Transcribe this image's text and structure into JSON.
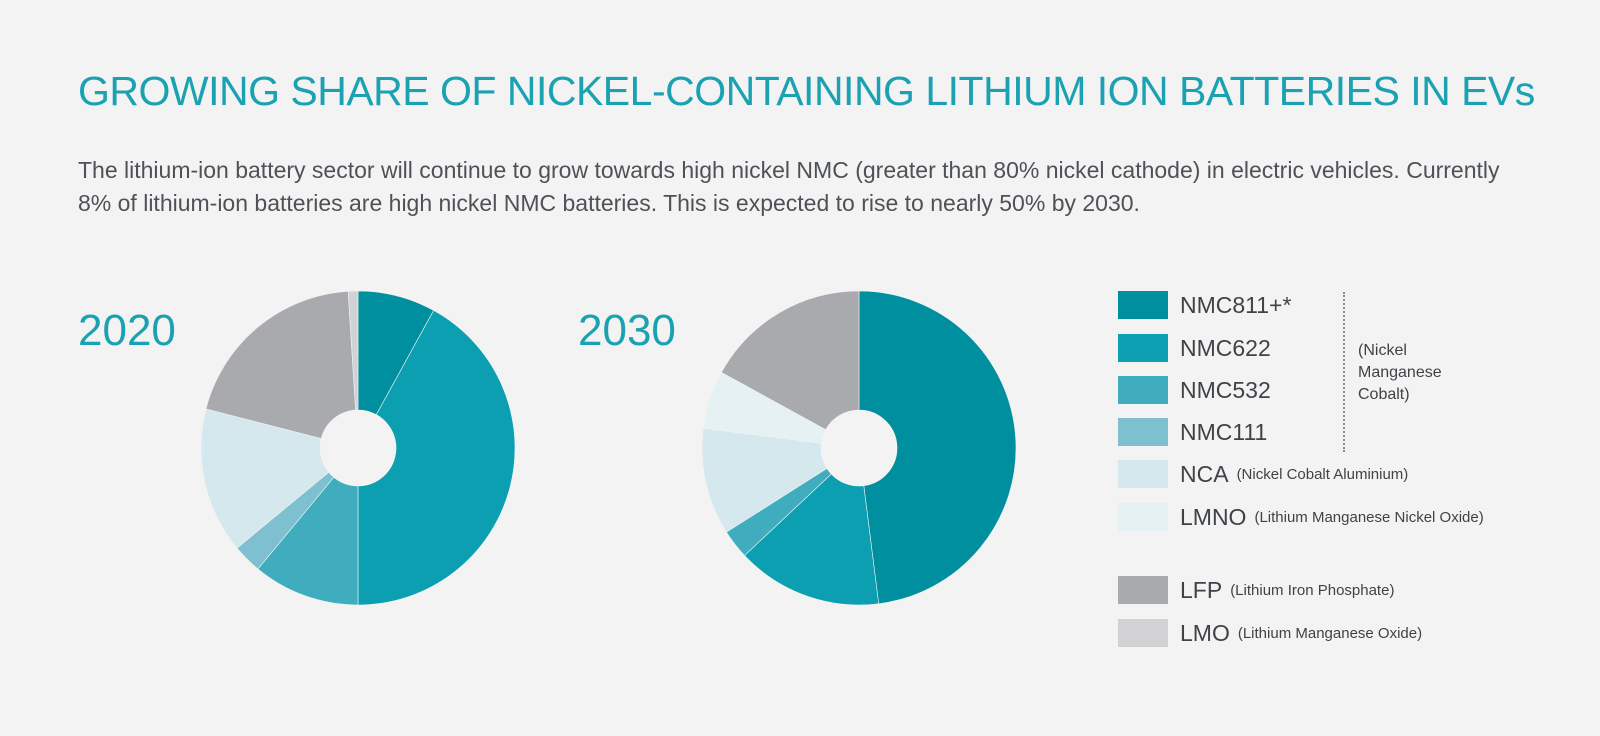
{
  "title": "GROWING SHARE OF NICKEL-CONTAINING LITHIUM ION BATTERIES IN EVs",
  "subtitle": "The lithium-ion battery sector will continue to grow towards high nickel NMC (greater than 80% nickel cathode) in electric vehicles. Currently 8% of lithium-ion batteries are high nickel NMC batteries. This is expected to rise to nearly 50% by 2030.",
  "legend": {
    "items": [
      {
        "label": "NMC811+*",
        "sub": "",
        "color": "#008f9f"
      },
      {
        "label": "NMC622",
        "sub": "",
        "color": "#0b9fb1"
      },
      {
        "label": "NMC532",
        "sub": "",
        "color": "#40adbe"
      },
      {
        "label": "NMC111",
        "sub": "",
        "color": "#7ec0d0"
      },
      {
        "label": "NCA",
        "sub": "(Nickel Cobalt Aluminium)",
        "color": "#d4e8ee"
      },
      {
        "label": "LMNO",
        "sub": "(Lithium Manganese Nickel Oxide)",
        "color": "#e6f1f4"
      },
      {
        "label": "LFP",
        "sub": "(Lithium Iron Phosphate)",
        "color": "#a9aaae"
      },
      {
        "label": "LMO",
        "sub": "(Lithium Manganese Oxide)",
        "color": "#d2d1d4"
      }
    ],
    "nmc_note": "(Nickel Manganese Cobalt)"
  },
  "chart_data": [
    {
      "type": "pie",
      "title": "2020",
      "categories": [
        "NMC811+*",
        "NMC622",
        "NMC532",
        "NMC111",
        "NCA",
        "LMNO",
        "LFP",
        "LMO"
      ],
      "values": [
        8,
        42,
        11,
        3,
        15,
        0,
        20,
        1
      ]
    },
    {
      "type": "pie",
      "title": "2030",
      "categories": [
        "NMC811+*",
        "NMC622",
        "NMC532",
        "NMC111",
        "NCA",
        "LMNO",
        "LFP",
        "LMO"
      ],
      "values": [
        48,
        15,
        3,
        0,
        11,
        6,
        17,
        0
      ]
    }
  ]
}
